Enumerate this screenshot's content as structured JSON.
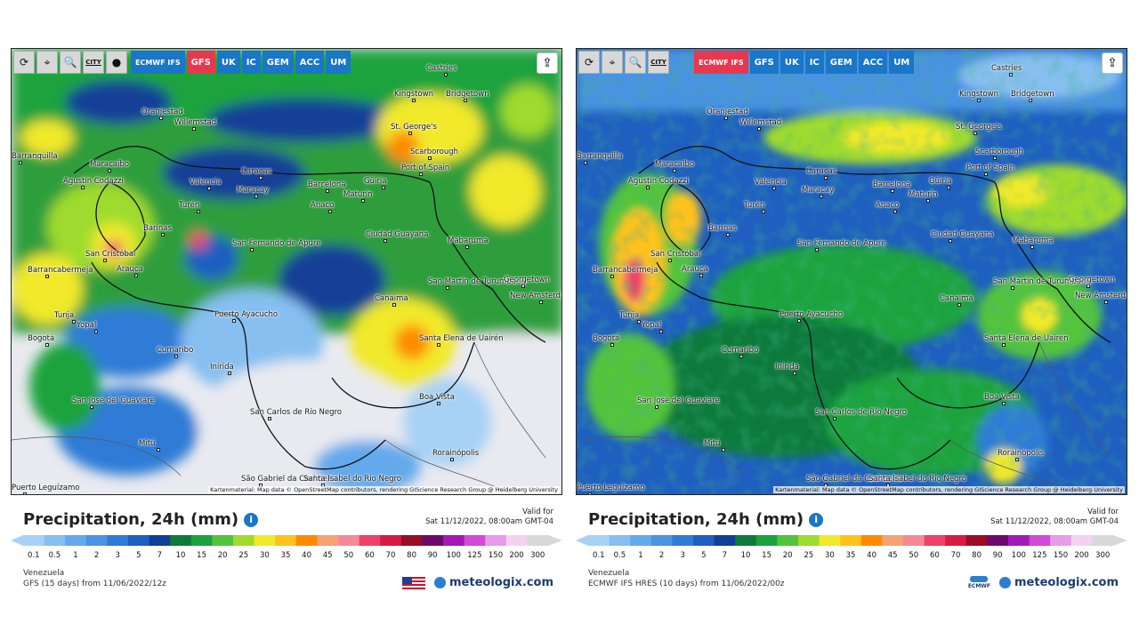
{
  "panels": [
    {
      "toolbar": [
        "⟳",
        "⌖",
        "🔍",
        "CITY",
        "●"
      ],
      "models": [
        {
          "label": "ECMWF IFS",
          "active": false
        },
        {
          "label": "GFS",
          "active": true
        },
        {
          "label": "UK",
          "active": false
        },
        {
          "label": "IC",
          "active": false
        },
        {
          "label": "GEM",
          "active": false
        },
        {
          "label": "ACC",
          "active": false
        },
        {
          "label": "UM",
          "active": false
        }
      ],
      "title": "Precipitation, 24h (mm)",
      "valid_label": "Valid for",
      "valid_time": "Sat 11/12/2022, 08:00am GMT-04",
      "region": "Venezuela",
      "model_run": "GFS (15 days) from 11/06/2022/12z",
      "brand": "meteologix.com",
      "logo": "us-flag",
      "attribution": "Kartenmaterial: Map data © OpenStreetMap contributors, rendering GIScience Research Group @ Heidelberg University"
    },
    {
      "toolbar": [
        "⟳",
        "⌖",
        "🔍",
        "CITY"
      ],
      "models": [
        {
          "label": "ECMWF IFS",
          "active": true
        },
        {
          "label": "GFS",
          "active": false
        },
        {
          "label": "UK",
          "active": false
        },
        {
          "label": "IC",
          "active": false
        },
        {
          "label": "GEM",
          "active": false
        },
        {
          "label": "ACC",
          "active": false
        },
        {
          "label": "UM",
          "active": false
        }
      ],
      "title": "Precipitation, 24h (mm)",
      "valid_label": "Valid for",
      "valid_time": "Sat 11/12/2022, 08:00am GMT-04",
      "region": "Venezuela",
      "model_run": "ECMWF IFS HRES (10 days) from 11/06/2022/00z",
      "brand": "meteologix.com",
      "logo": "ECMWF",
      "attribution": "Kartenmaterial: Map data © OpenStreetMap contributors, rendering GIScience Research Group @ Heidelberg University"
    }
  ],
  "cities": [
    "Castries",
    "Kingstown",
    "Bridgetown",
    "Oranjestad",
    "Willemstad",
    "St. George's",
    "Scarborough",
    "Port of Spain",
    "Barranquilla",
    "Maracaibo",
    "Agustín Codazzi",
    "Caracas",
    "Valencia",
    "Maracay",
    "Barcelona",
    "Güiria",
    "Maturín",
    "Anaco",
    "Turén",
    "Barinas",
    "San Fernando de Apure",
    "Ciudad Guayana",
    "Mabaruma",
    "San Cristóbal",
    "Barrancabermeja",
    "Arauca",
    "San Martín de Turumbang",
    "Georgetown",
    "New Amsterdam",
    "Canaima",
    "Tunja",
    "Yopal",
    "Puerto Ayacucho",
    "Bogotá",
    "Santa Elena de Uairén",
    "Cumaribo",
    "Inírida",
    "San José del Guaviare",
    "Boa Vista",
    "San Carlos de Río Negro",
    "Mitú",
    "Rorainópolis",
    "São Gabriel da Cachoeira",
    "Santa Isabel do Rio Negro",
    "Puerto Leguízamo"
  ],
  "legend": {
    "ticks": [
      "0.1",
      "0.5",
      "1",
      "2",
      "3",
      "5",
      "7",
      "10",
      "15",
      "20",
      "25",
      "30",
      "35",
      "40",
      "45",
      "50",
      "60",
      "70",
      "80",
      "90",
      "100",
      "125",
      "150",
      "200",
      "300"
    ],
    "colors": [
      "#a7d2f5",
      "#86bff0",
      "#64a9eb",
      "#4a93e0",
      "#2f7bd6",
      "#1e5fc0",
      "#123f97",
      "#0e7a3a",
      "#1aa33c",
      "#52c43a",
      "#9fdb2e",
      "#f1e92b",
      "#ffc21a",
      "#ff8a00",
      "#f6a274",
      "#f58a96",
      "#ee4268",
      "#d81b45",
      "#9a0d22",
      "#6d0a6e",
      "#a418b8",
      "#d04bd6",
      "#e79be8",
      "#f4d2ef",
      "#d8d8d8"
    ]
  }
}
